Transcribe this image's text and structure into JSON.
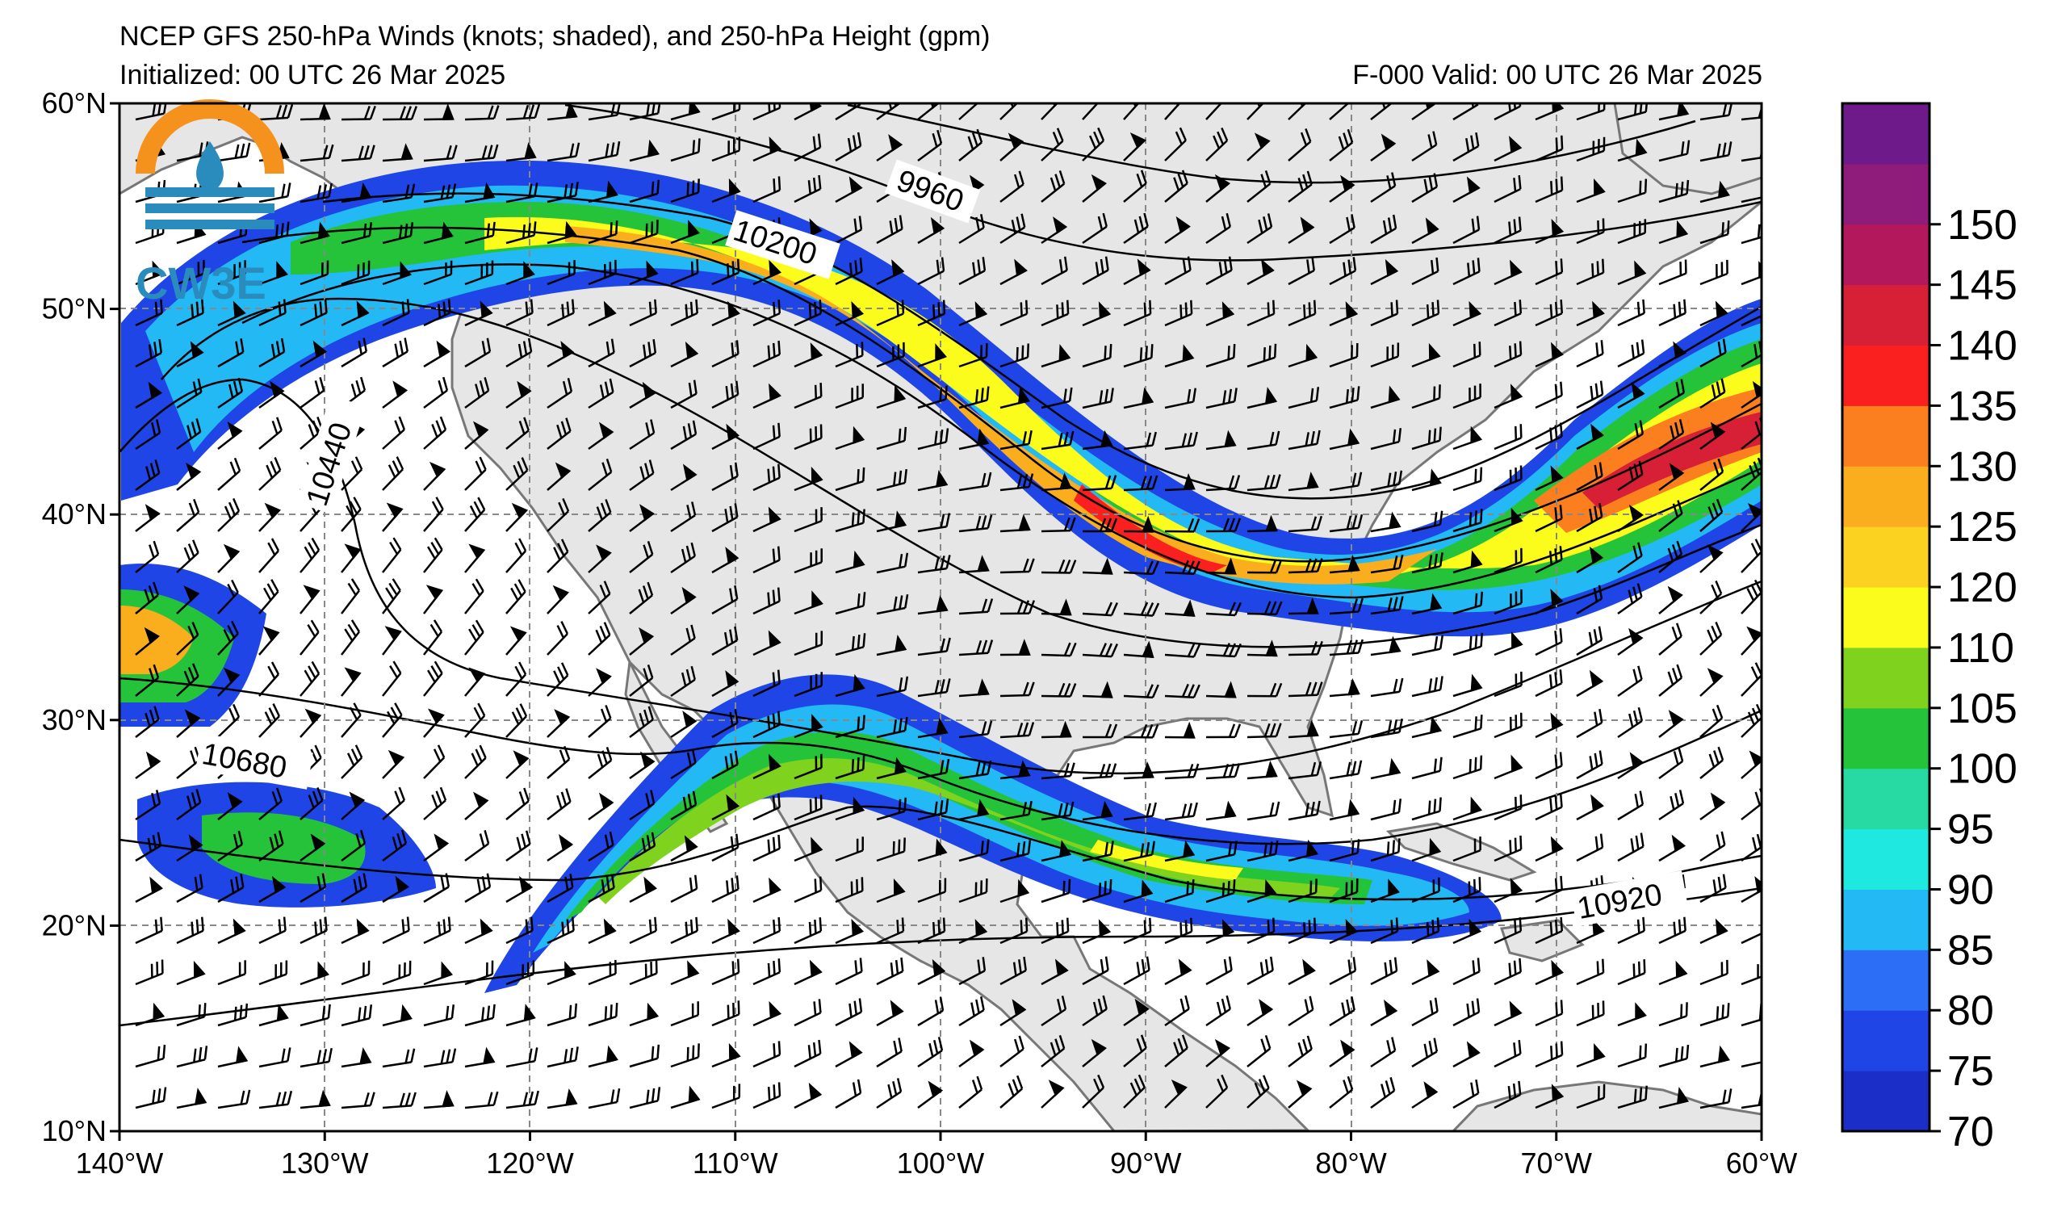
{
  "header": {
    "title": "NCEP GFS 250-hPa Winds (knots; shaded), and 250-hPa Height (gpm)",
    "initialized": "Initialized: 00 UTC 26 Mar 2025",
    "valid": "F-000  Valid: 00 UTC 26 Mar 2025"
  },
  "logo": {
    "text": "CW3E"
  },
  "map": {
    "lon_range": [
      -140,
      -60
    ],
    "lat_range": [
      10,
      60
    ],
    "lon_ticks": [
      "140°W",
      "130°W",
      "120°W",
      "110°W",
      "100°W",
      "90°W",
      "80°W",
      "70°W",
      "60°W"
    ],
    "lat_ticks": [
      "10°N",
      "20°N",
      "30°N",
      "40°N",
      "50°N",
      "60°N"
    ],
    "gridlines": "dashed",
    "land_color": "#e6e6e6",
    "ocean_color": "#ffffff"
  },
  "contour_labels": [
    "9960",
    "10200",
    "10440",
    "10680",
    "10920"
  ],
  "colorbar": {
    "levels": [
      70,
      75,
      80,
      85,
      90,
      95,
      100,
      105,
      110,
      120,
      125,
      130,
      135,
      140,
      145,
      150
    ],
    "labels": [
      "70",
      "75",
      "80",
      "85",
      "90",
      "95",
      "100",
      "105",
      "110",
      "120",
      "125",
      "130",
      "135",
      "140",
      "145",
      "150"
    ],
    "colors": [
      "#1b2fc8",
      "#1f45e6",
      "#2c6ef5",
      "#23b9f5",
      "#1ee8e0",
      "#27d9a3",
      "#25c33a",
      "#7fd31f",
      "#fbfb1c",
      "#fbd21f",
      "#fbae1d",
      "#fb7f1f",
      "#fb2020",
      "#d71f35",
      "#b4185c",
      "#8f1b7a",
      "#6e1a8a"
    ]
  }
}
